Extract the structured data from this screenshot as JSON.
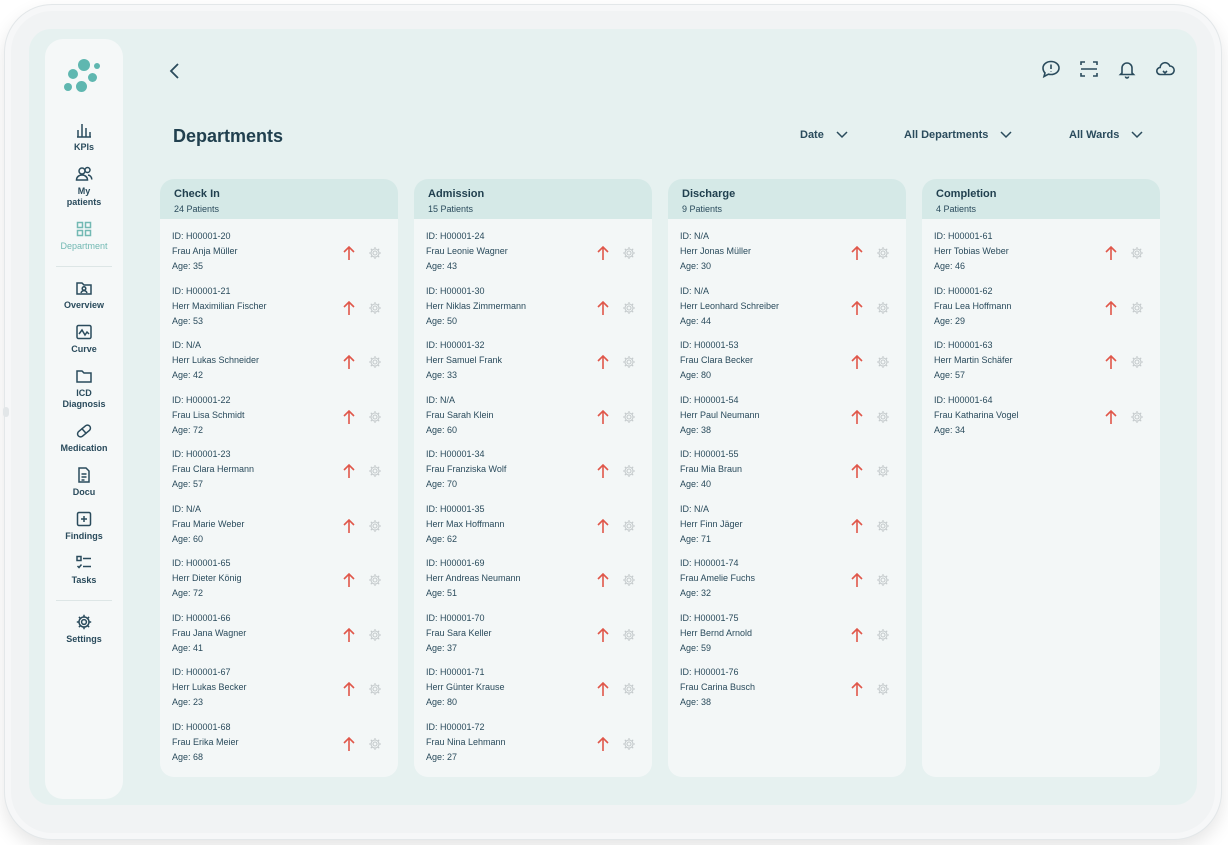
{
  "sidebar": {
    "items": [
      {
        "label": "KPIs",
        "icon": "bar-chart-icon"
      },
      {
        "label": "My patients",
        "icon": "users-icon"
      },
      {
        "label": "Department",
        "icon": "grid-icon",
        "active": true
      },
      {
        "label": "Overview",
        "icon": "folder-user-icon"
      },
      {
        "label": "Curve",
        "icon": "chart-curve-icon"
      },
      {
        "label": "ICD Diagnosis",
        "icon": "folder-icon"
      },
      {
        "label": "Medication",
        "icon": "pill-icon"
      },
      {
        "label": "Docu",
        "icon": "document-icon"
      },
      {
        "label": "Findings",
        "icon": "plus-square-icon"
      },
      {
        "label": "Tasks",
        "icon": "tasks-icon"
      },
      {
        "label": "Settings",
        "icon": "gear-icon"
      }
    ]
  },
  "header": {
    "title": "Departments",
    "filters": {
      "date": "Date",
      "departments": "All Departments",
      "wards": "All Wards"
    }
  },
  "colors": {
    "accent": "#72b9b3",
    "arrow": "#e0574a",
    "column_header": "#d5e9e7"
  },
  "columns": [
    {
      "title": "Check In",
      "count": "24 Patients",
      "patients": [
        {
          "id": "ID: H00001-20",
          "name": "Frau Anja Müller",
          "age": "Age: 35"
        },
        {
          "id": "ID: H00001-21",
          "name": "Herr Maximilian Fischer",
          "age": "Age: 53"
        },
        {
          "id": "ID: N/A",
          "name": "Herr Lukas Schneider",
          "age": "Age: 42"
        },
        {
          "id": "ID: H00001-22",
          "name": "Frau Lisa Schmidt",
          "age": "Age: 72"
        },
        {
          "id": "ID: H00001-23",
          "name": "Frau Clara Hermann",
          "age": "Age: 57"
        },
        {
          "id": "ID: N/A",
          "name": "Frau Marie Weber",
          "age": "Age: 60"
        },
        {
          "id": "ID: H00001-65",
          "name": "Herr Dieter König",
          "age": "Age: 72"
        },
        {
          "id": "ID: H00001-66",
          "name": "Frau Jana Wagner",
          "age": "Age: 41"
        },
        {
          "id": "ID: H00001-67",
          "name": "Herr Lukas Becker",
          "age": "Age: 23"
        },
        {
          "id": "ID: H00001-68",
          "name": "Frau Erika Meier",
          "age": "Age: 68"
        }
      ]
    },
    {
      "title": "Admission",
      "count": "15 Patients",
      "patients": [
        {
          "id": "ID: H00001-24",
          "name": "Frau Leonie Wagner",
          "age": "Age: 43"
        },
        {
          "id": "ID: H00001-30",
          "name": "Herr Niklas Zimmermann",
          "age": "Age: 50"
        },
        {
          "id": "ID: H00001-32",
          "name": "Herr Samuel Frank",
          "age": "Age: 33"
        },
        {
          "id": "ID: N/A",
          "name": "Frau Sarah Klein",
          "age": "Age: 60"
        },
        {
          "id": "ID: H00001-34",
          "name": "Frau Franziska Wolf",
          "age": "Age: 70"
        },
        {
          "id": "ID: H00001-35",
          "name": "Herr Max Hoffmann",
          "age": "Age: 62"
        },
        {
          "id": "ID: H00001-69",
          "name": "Herr Andreas Neumann",
          "age": "Age: 51"
        },
        {
          "id": "ID: H00001-70",
          "name": "Frau Sara Keller",
          "age": "Age: 37"
        },
        {
          "id": "ID: H00001-71",
          "name": "Herr Günter Krause",
          "age": "Age: 80"
        },
        {
          "id": "ID: H00001-72",
          "name": "Frau Nina Lehmann",
          "age": "Age: 27"
        }
      ]
    },
    {
      "title": "Discharge",
      "count": "9 Patients",
      "patients": [
        {
          "id": "ID: N/A",
          "name": "Herr Jonas Müller",
          "age": "Age: 30"
        },
        {
          "id": "ID: N/A",
          "name": "Herr Leonhard Schreiber",
          "age": "Age: 44"
        },
        {
          "id": "ID: H00001-53",
          "name": "Frau Clara Becker",
          "age": "Age: 80"
        },
        {
          "id": "ID: H00001-54",
          "name": "Herr Paul Neumann",
          "age": "Age: 38"
        },
        {
          "id": "ID: H00001-55",
          "name": "Frau Mia Braun",
          "age": "Age: 40"
        },
        {
          "id": "ID: N/A",
          "name": "Herr Finn Jäger",
          "age": "Age: 71"
        },
        {
          "id": "ID: H00001-74",
          "name": "Frau Amelie Fuchs",
          "age": "Age: 32"
        },
        {
          "id": "ID: H00001-75",
          "name": "Herr Bernd Arnold",
          "age": "Age: 59"
        },
        {
          "id": "ID: H00001-76",
          "name": "Frau Carina Busch",
          "age": "Age: 38"
        }
      ]
    },
    {
      "title": "Completion",
      "count": "4 Patients",
      "patients": [
        {
          "id": "ID: H00001-61",
          "name": "Herr Tobias Weber",
          "age": "Age: 46"
        },
        {
          "id": "ID: H00001-62",
          "name": "Frau Lea Hoffmann",
          "age": "Age: 29"
        },
        {
          "id": "ID: H00001-63",
          "name": "Herr Martin Schäfer",
          "age": "Age: 57"
        },
        {
          "id": "ID: H00001-64",
          "name": "Frau Katharina Vogel",
          "age": "Age: 34"
        }
      ]
    }
  ]
}
